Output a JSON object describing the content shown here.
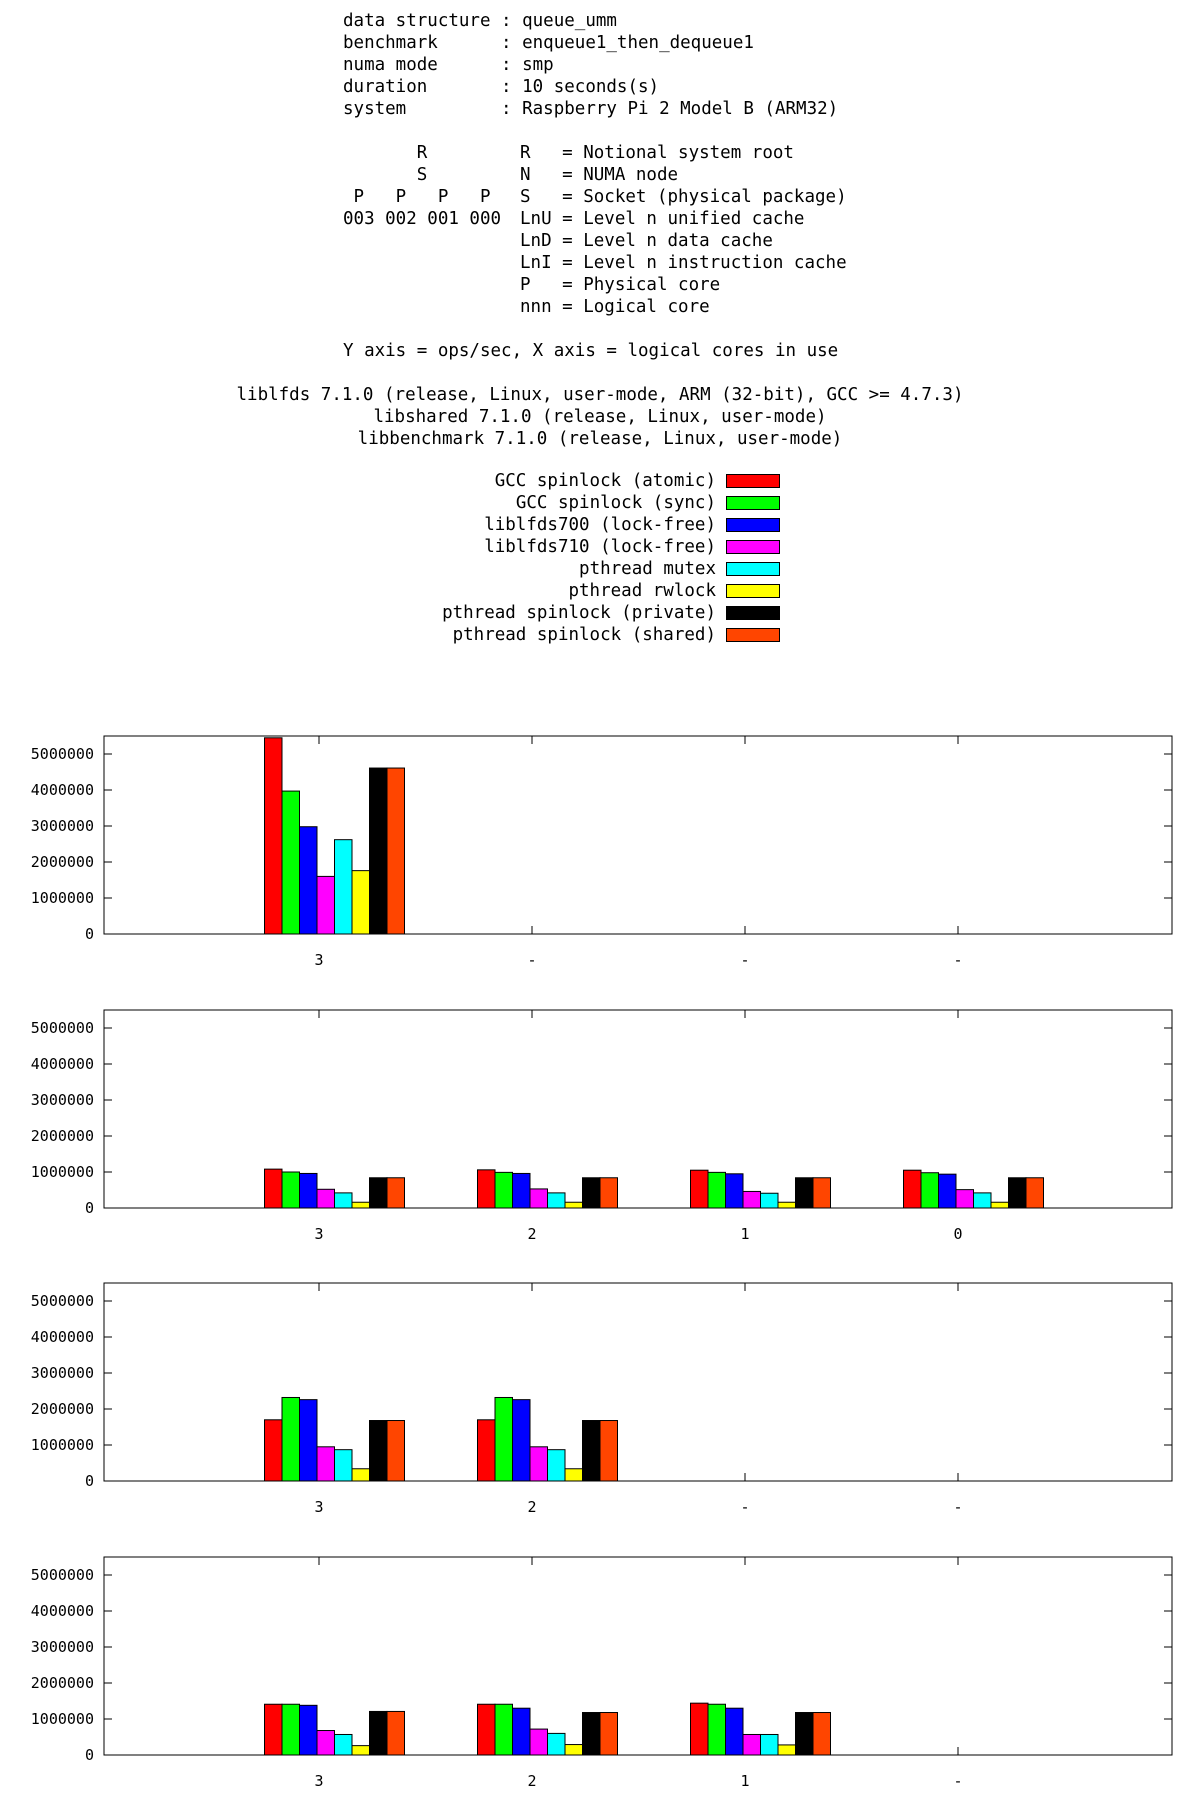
{
  "info": {
    "data_structure": "data structure : queue_umm",
    "benchmark": "benchmark      : enqueue1_then_dequeue1",
    "numa_mode": "numa mode      : smp",
    "duration": "duration       : 10 seconds(s)",
    "system": "system         : Raspberry Pi 2 Model B (ARM32)"
  },
  "topology": {
    "left": [
      "       R",
      "       S",
      " P   P   P   P",
      "003 002 001 000"
    ],
    "right": [
      "R   = Notional system root",
      "N   = NUMA node",
      "S   = Socket (physical package)",
      "LnU = Level n unified cache",
      "LnD = Level n data cache",
      "LnI = Level n instruction cache",
      "P   = Physical core",
      "nnn = Logical core"
    ]
  },
  "axis_note": "Y axis = ops/sec, X axis = logical cores in use",
  "versions": [
    "liblfds 7.1.0 (release, Linux, user-mode, ARM (32-bit), GCC >= 4.7.3)",
    "libshared 7.1.0 (release, Linux, user-mode)",
    "libbenchmark 7.1.0 (release, Linux, user-mode)"
  ],
  "legend": [
    {
      "label": "GCC spinlock (atomic)",
      "color": "#ff0000"
    },
    {
      "label": "GCC spinlock (sync)",
      "color": "#00ff00"
    },
    {
      "label": "liblfds700 (lock-free)",
      "color": "#0000ff"
    },
    {
      "label": "liblfds710 (lock-free)",
      "color": "#ff00ff"
    },
    {
      "label": "pthread mutex",
      "color": "#00ffff"
    },
    {
      "label": "pthread rwlock",
      "color": "#ffff00"
    },
    {
      "label": "pthread spinlock (private)",
      "color": "#000000"
    },
    {
      "label": "pthread spinlock (shared)",
      "color": "#ff4500"
    }
  ],
  "chart_data": [
    {
      "type": "bar",
      "categories": [
        "3",
        "-",
        "-",
        "-"
      ],
      "ylim": [
        0,
        5500000
      ],
      "yticks": [
        "0",
        "1000000",
        "2000000",
        "3000000",
        "4000000",
        "5000000"
      ],
      "groups": [
        [
          5450000,
          3970000,
          2980000,
          1600000,
          2620000,
          1760000,
          4610000,
          4610000
        ],
        null,
        null,
        null
      ]
    },
    {
      "type": "bar",
      "categories": [
        "3",
        "2",
        "1",
        "0"
      ],
      "ylim": [
        0,
        5500000
      ],
      "yticks": [
        "0",
        "1000000",
        "2000000",
        "3000000",
        "4000000",
        "5000000"
      ],
      "groups": [
        [
          1080000,
          1000000,
          960000,
          520000,
          420000,
          160000,
          840000,
          840000
        ],
        [
          1060000,
          990000,
          960000,
          530000,
          420000,
          160000,
          840000,
          840000
        ],
        [
          1050000,
          990000,
          950000,
          460000,
          410000,
          160000,
          840000,
          840000
        ],
        [
          1050000,
          980000,
          940000,
          510000,
          420000,
          160000,
          840000,
          840000
        ]
      ]
    },
    {
      "type": "bar",
      "categories": [
        "3",
        "2",
        "-",
        "-"
      ],
      "ylim": [
        0,
        5500000
      ],
      "yticks": [
        "0",
        "1000000",
        "2000000",
        "3000000",
        "4000000",
        "5000000"
      ],
      "groups": [
        [
          1700000,
          2320000,
          2260000,
          950000,
          870000,
          340000,
          1680000,
          1680000
        ],
        [
          1700000,
          2320000,
          2260000,
          950000,
          870000,
          340000,
          1680000,
          1680000
        ],
        null,
        null
      ]
    },
    {
      "type": "bar",
      "categories": [
        "3",
        "2",
        "1",
        "-"
      ],
      "ylim": [
        0,
        5500000
      ],
      "yticks": [
        "0",
        "1000000",
        "2000000",
        "3000000",
        "4000000",
        "5000000"
      ],
      "groups": [
        [
          1410000,
          1410000,
          1380000,
          680000,
          570000,
          260000,
          1210000,
          1210000
        ],
        [
          1410000,
          1410000,
          1300000,
          720000,
          600000,
          290000,
          1180000,
          1180000
        ],
        [
          1440000,
          1410000,
          1300000,
          570000,
          570000,
          280000,
          1180000,
          1180000
        ],
        null
      ]
    }
  ]
}
